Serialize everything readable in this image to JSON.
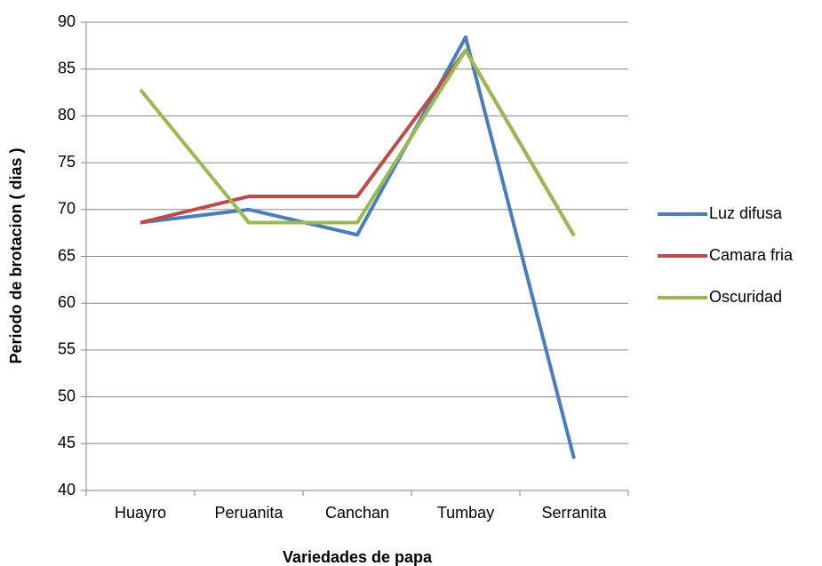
{
  "chart_data": {
    "type": "line",
    "x_label": "Variedades de papa",
    "y_label": "Periodo de brotacion ( dias )",
    "categories": [
      "Huayro",
      "Peruanita",
      "Canchan",
      "Tumbay",
      "Serranita"
    ],
    "series": [
      {
        "name": "Luz difusa",
        "color": "#4a7ebb",
        "values": [
          68.6,
          70,
          67.3,
          88.4,
          43.4
        ]
      },
      {
        "name": "Camara fria",
        "color": "#be4b48",
        "values": [
          68.6,
          71.4,
          71.4,
          87,
          67.2
        ]
      },
      {
        "name": "Oscuridad",
        "color": "#98b954",
        "values": [
          82.8,
          68.6,
          68.6,
          87,
          67.2
        ]
      }
    ],
    "ylim": [
      40,
      90
    ],
    "yticks": [
      40,
      45,
      50,
      55,
      60,
      65,
      70,
      75,
      80,
      85,
      90
    ],
    "grid": true,
    "legend": "right"
  }
}
